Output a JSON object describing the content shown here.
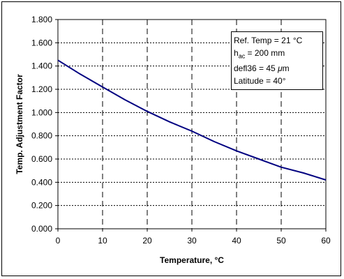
{
  "chart_data": {
    "type": "line",
    "title": "",
    "xlabel": "Temperature, °C",
    "ylabel": "Temp. Adjustment Factor",
    "xlim": [
      0,
      60
    ],
    "ylim": [
      0,
      1.8
    ],
    "x_ticks": [
      "0",
      "10",
      "20",
      "30",
      "40",
      "50",
      "60"
    ],
    "y_ticks": [
      "0.000",
      "0.200",
      "0.400",
      "0.600",
      "0.800",
      "1.000",
      "1.200",
      "1.400",
      "1.600",
      "1.800"
    ],
    "grid": {
      "vertical": "dashed",
      "horizontal": "dotted"
    },
    "series": [
      {
        "color": "#000080",
        "x": [
          0,
          5,
          10,
          15,
          20,
          25,
          30,
          35,
          40,
          45,
          50,
          55,
          60
        ],
        "y": [
          1.45,
          1.33,
          1.22,
          1.11,
          1.01,
          0.92,
          0.84,
          0.75,
          0.67,
          0.6,
          0.53,
          0.48,
          0.42
        ]
      }
    ],
    "annotation": {
      "lines": [
        "Ref. Temp = 21 °C",
        "h",
        "ac",
        " = 200 mm",
        "defl36 = 45 ",
        "μ",
        "m",
        "Latitude = 40°"
      ]
    }
  }
}
